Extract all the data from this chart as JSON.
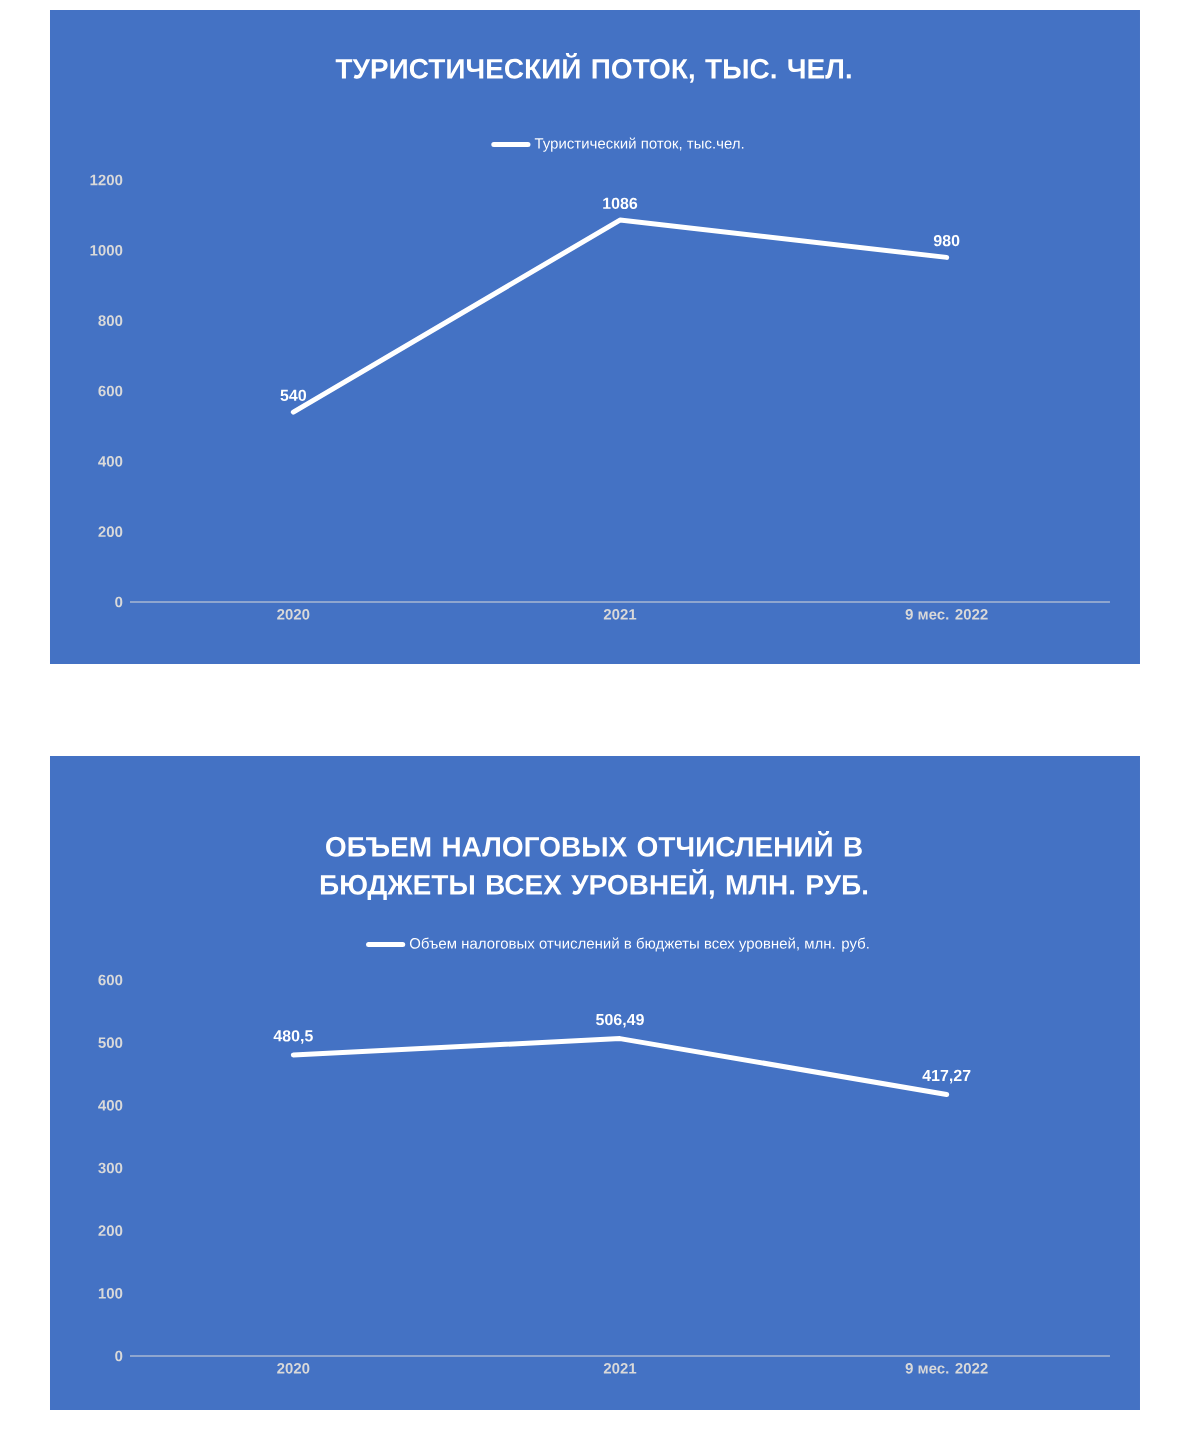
{
  "chart_data": [
    {
      "type": "line",
      "title": "ТУРИСТИЧЕСКИЙ ПОТОК, ТЫС. ЧЕЛ.",
      "categories": [
        "2020",
        "2021",
        "9 мес. 2022"
      ],
      "legend": "top",
      "ylim": [
        0,
        1200
      ],
      "yticks": [
        0,
        200,
        400,
        600,
        800,
        1000,
        1200
      ],
      "series": [
        {
          "name": "Туристический поток, тыс.чел.",
          "color": "#ffffff",
          "values": [
            540,
            1086,
            980
          ],
          "value_labels": [
            "540",
            "1086",
            "980"
          ]
        }
      ]
    },
    {
      "type": "line",
      "title": "ОБЪЕМ НАЛОГОВЫХ ОТЧИСЛЕНИЙ В БЮДЖЕТЫ ВСЕХ УРОВНЕЙ, МЛН. РУБ.",
      "categories": [
        "2020",
        "2021",
        "9 мес. 2022"
      ],
      "legend": "top",
      "ylim": [
        0,
        600
      ],
      "yticks": [
        0,
        100,
        200,
        300,
        400,
        500,
        600
      ],
      "series": [
        {
          "name": "Объем налоговых отчислений в бюджеты всех уровней, млн. руб.",
          "color": "#ffffff",
          "values": [
            480.5,
            506.49,
            417.27
          ],
          "value_labels": [
            "480,5",
            "506,49",
            "417,27"
          ]
        }
      ]
    }
  ]
}
